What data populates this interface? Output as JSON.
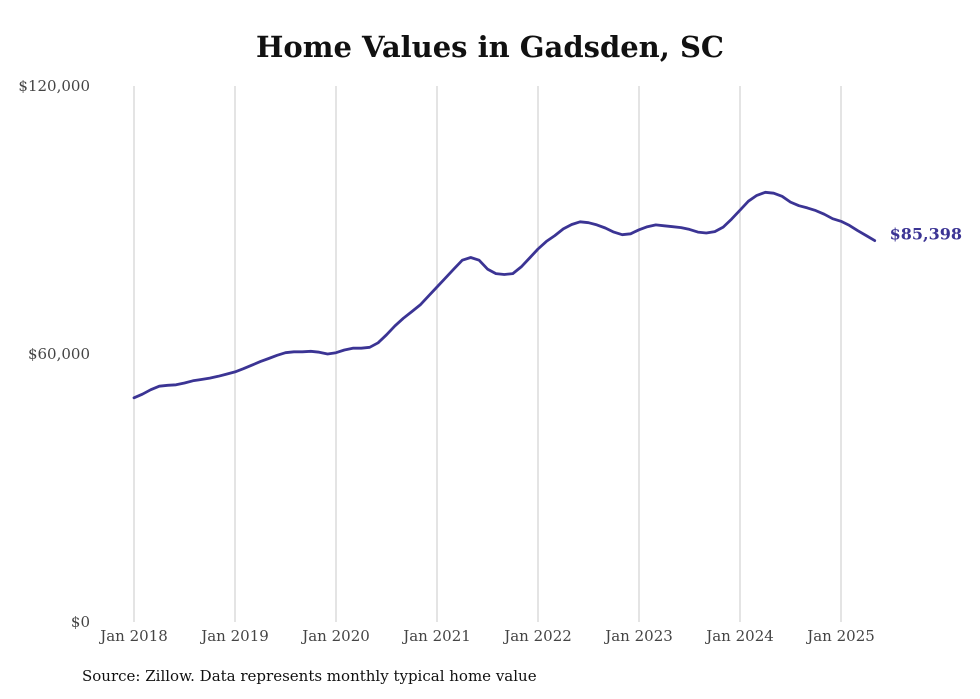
{
  "chart_data": {
    "type": "line",
    "title": "Home Values in Gadsden, SC",
    "source": "Source: Zillow. Data represents monthly typical home value",
    "ylim": [
      0,
      120000
    ],
    "yticks": [
      {
        "value": 0,
        "label": "$0"
      },
      {
        "value": 60000,
        "label": "$60,000"
      },
      {
        "value": 120000,
        "label": "$120,000"
      }
    ],
    "xticks": [
      {
        "x": "2018-01",
        "label": "Jan 2018"
      },
      {
        "x": "2019-01",
        "label": "Jan 2019"
      },
      {
        "x": "2020-01",
        "label": "Jan 2020"
      },
      {
        "x": "2021-01",
        "label": "Jan 2021"
      },
      {
        "x": "2022-01",
        "label": "Jan 2022"
      },
      {
        "x": "2023-01",
        "label": "Jan 2023"
      },
      {
        "x": "2024-01",
        "label": "Jan 2024"
      },
      {
        "x": "2025-01",
        "label": "Jan 2025"
      }
    ],
    "xlim": [
      "2018-01",
      "2025-05"
    ],
    "grid": "vertical",
    "line_color": "#3b3494",
    "end_label": "$85,398",
    "series": [
      {
        "name": "",
        "x": [
          "2018-01",
          "2018-02",
          "2018-03",
          "2018-04",
          "2018-05",
          "2018-06",
          "2018-07",
          "2018-08",
          "2018-09",
          "2018-10",
          "2018-11",
          "2018-12",
          "2019-01",
          "2019-02",
          "2019-03",
          "2019-04",
          "2019-05",
          "2019-06",
          "2019-07",
          "2019-08",
          "2019-09",
          "2019-10",
          "2019-11",
          "2019-12",
          "2020-01",
          "2020-02",
          "2020-03",
          "2020-04",
          "2020-05",
          "2020-06",
          "2020-07",
          "2020-08",
          "2020-09",
          "2020-10",
          "2020-11",
          "2020-12",
          "2021-01",
          "2021-02",
          "2021-03",
          "2021-04",
          "2021-05",
          "2021-06",
          "2021-07",
          "2021-08",
          "2021-09",
          "2021-10",
          "2021-11",
          "2021-12",
          "2022-01",
          "2022-02",
          "2022-03",
          "2022-04",
          "2022-05",
          "2022-06",
          "2022-07",
          "2022-08",
          "2022-09",
          "2022-10",
          "2022-11",
          "2022-12",
          "2023-01",
          "2023-02",
          "2023-03",
          "2023-04",
          "2023-05",
          "2023-06",
          "2023-07",
          "2023-08",
          "2023-09",
          "2023-10",
          "2023-11",
          "2023-12",
          "2024-01",
          "2024-02",
          "2024-03",
          "2024-04",
          "2024-05",
          "2024-06",
          "2024-07",
          "2024-08",
          "2024-09",
          "2024-10",
          "2024-11",
          "2024-12",
          "2025-01",
          "2025-02",
          "2025-03",
          "2025-04",
          "2025-05"
        ],
        "values": [
          50200,
          51000,
          52000,
          52800,
          53000,
          53100,
          53500,
          54000,
          54300,
          54600,
          55000,
          55500,
          56000,
          56700,
          57500,
          58300,
          59000,
          59700,
          60300,
          60500,
          60500,
          60600,
          60400,
          60000,
          60300,
          60900,
          61300,
          61300,
          61500,
          62500,
          64300,
          66300,
          68000,
          69500,
          71000,
          73000,
          75000,
          77000,
          79000,
          81000,
          81600,
          81000,
          79000,
          78000,
          77800,
          78000,
          79500,
          81500,
          83500,
          85200,
          86500,
          88000,
          89000,
          89600,
          89400,
          88900,
          88200,
          87300,
          86700,
          86900,
          87800,
          88500,
          88900,
          88700,
          88500,
          88300,
          87900,
          87300,
          87100,
          87400,
          88400,
          90200,
          92200,
          94200,
          95500,
          96200,
          96000,
          95300,
          94000,
          93200,
          92700,
          92100,
          91300,
          90300,
          89700,
          88800,
          87600,
          86500,
          85398
        ]
      }
    ]
  }
}
